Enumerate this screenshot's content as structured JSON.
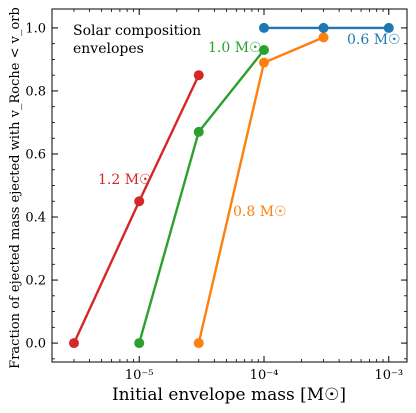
{
  "chart_data": {
    "type": "line",
    "xlabel": "Initial envelope mass [M☉]",
    "ylabel": "Fraction of ejected mass ejected with v_Roche < v_orb",
    "xscale": "log",
    "xlim": [
      2e-06,
      0.0014
    ],
    "ylim": [
      -0.06,
      1.06
    ],
    "grid": false,
    "annotation": [
      "Solar composition",
      "envelopes"
    ],
    "x_ticks": [
      {
        "value": 1e-05,
        "label": "10⁻⁵"
      },
      {
        "value": 0.0001,
        "label": "10⁻⁴"
      },
      {
        "value": 0.001,
        "label": "10⁻³"
      }
    ],
    "y_ticks": [
      {
        "value": 0.0,
        "label": "0.0"
      },
      {
        "value": 0.2,
        "label": "0.2"
      },
      {
        "value": 0.4,
        "label": "0.4"
      },
      {
        "value": 0.6,
        "label": "0.6"
      },
      {
        "value": 0.8,
        "label": "0.8"
      },
      {
        "value": 1.0,
        "label": "1.0"
      }
    ],
    "series": [
      {
        "name": "1.2 M☉",
        "color": "#d62728",
        "x": [
          3e-06,
          1e-05,
          3e-05
        ],
        "y": [
          0.0,
          0.45,
          0.85
        ]
      },
      {
        "name": "1.0 M☉",
        "color": "#2ca02c",
        "x": [
          1e-05,
          3e-05,
          0.0001
        ],
        "y": [
          0.0,
          0.67,
          0.93
        ]
      },
      {
        "name": "0.8 M☉",
        "color": "#ff7f0e",
        "x": [
          3e-05,
          0.0001,
          0.0003
        ],
        "y": [
          0.0,
          0.89,
          0.97
        ]
      },
      {
        "name": "0.6 M☉",
        "color": "#1f77b4",
        "x": [
          0.0001,
          0.0003,
          0.001
        ],
        "y": [
          1.0,
          1.0,
          1.0
        ]
      }
    ]
  }
}
